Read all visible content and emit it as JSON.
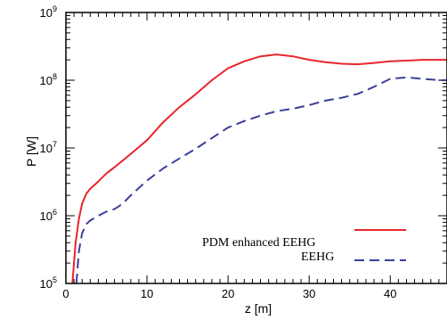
{
  "chart_data": {
    "type": "line",
    "title": "",
    "xlabel": "z [m]",
    "ylabel": "P [W]",
    "xlim": [
      0,
      47
    ],
    "ylim": [
      100000,
      1000000000
    ],
    "yscale": "log",
    "x_ticks": [
      0,
      10,
      20,
      30,
      40
    ],
    "x_tick_labels": [
      "0",
      "10",
      "20",
      "30",
      "40"
    ],
    "y_ticks": [
      100000,
      1000000,
      10000000,
      100000000,
      1000000000
    ],
    "y_tick_labels": [
      {
        "base": "10",
        "exp": "5"
      },
      {
        "base": "10",
        "exp": "6"
      },
      {
        "base": "10",
        "exp": "7"
      },
      {
        "base": "10",
        "exp": "8"
      },
      {
        "base": "10",
        "exp": "9"
      }
    ],
    "grid": false,
    "legend_position": "lower-right",
    "series": [
      {
        "name": "PDM enhanced EEHG",
        "color": "#e8262b",
        "dash": "solid",
        "x": [
          0.8,
          1.2,
          1.6,
          2.0,
          2.5,
          3.0,
          4.0,
          5.0,
          6.0,
          7.0,
          8.0,
          10.0,
          12.0,
          14.0,
          16.0,
          18.0,
          20.0,
          22.0,
          24.0,
          26.0,
          28.0,
          30.0,
          32.0,
          34.0,
          36.0,
          38.0,
          40.0,
          42.0,
          44.0,
          46.0,
          47.0
        ],
        "y": [
          100000,
          400000,
          900000,
          1500000,
          2100000,
          2500000,
          3200000,
          4200000,
          5200000,
          6500000,
          8200000,
          13000000,
          24000000,
          40000000,
          62000000,
          100000000,
          150000000,
          190000000,
          225000000,
          240000000,
          225000000,
          200000000,
          185000000,
          175000000,
          172000000,
          180000000,
          190000000,
          195000000,
          200000000,
          200000000,
          200000000
        ]
      },
      {
        "name": "EEHG",
        "color": "#3a3f9b",
        "dash": "dashed",
        "x": [
          1.3,
          1.6,
          2.0,
          2.5,
          3.0,
          4.0,
          5.0,
          6.0,
          7.0,
          8.0,
          10.0,
          12.0,
          14.0,
          16.0,
          18.0,
          20.0,
          22.0,
          24.0,
          26.0,
          28.0,
          30.0,
          32.0,
          34.0,
          36.0,
          38.0,
          40.0,
          42.0,
          44.0,
          46.0,
          47.0
        ],
        "y": [
          100000,
          300000,
          550000,
          750000,
          850000,
          1000000,
          1150000,
          1250000,
          1500000,
          2000000,
          3300000,
          5000000,
          7000000,
          9700000,
          14000000,
          20000000,
          25000000,
          30000000,
          35000000,
          38000000,
          43000000,
          50000000,
          55000000,
          63000000,
          80000000,
          105000000,
          110000000,
          105000000,
          100000000,
          100000000
        ]
      }
    ]
  }
}
